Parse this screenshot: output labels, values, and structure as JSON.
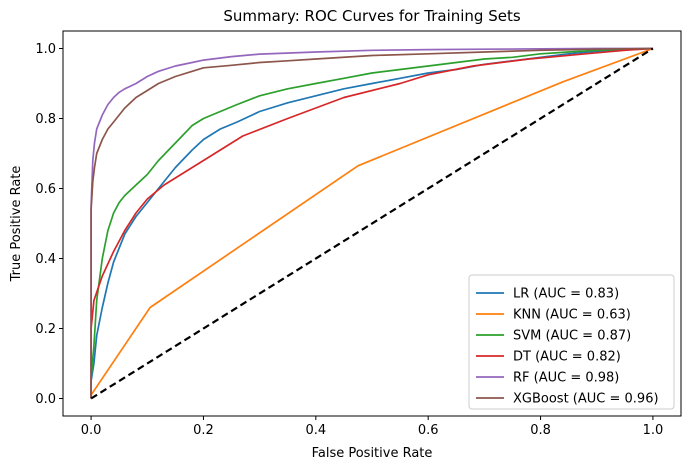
{
  "chart_data": {
    "type": "line",
    "title": "Summary: ROC Curves for Training Sets",
    "xlabel": "False Positive Rate",
    "ylabel": "True Positive Rate",
    "xlim": [
      -0.05,
      1.05
    ],
    "ylim": [
      -0.05,
      1.05
    ],
    "xticks": [
      "0.0",
      "0.2",
      "0.4",
      "0.6",
      "0.8",
      "1.0"
    ],
    "yticks": [
      "0.0",
      "0.2",
      "0.4",
      "0.6",
      "0.8",
      "1.0"
    ],
    "grid": false,
    "legend_position": "lower-right",
    "series": [
      {
        "name": "LR (AUC = 0.83)",
        "color": "#1f77b4",
        "x": [
          0.0,
          0.0,
          0.005,
          0.01,
          0.02,
          0.03,
          0.04,
          0.05,
          0.06,
          0.08,
          0.1,
          0.12,
          0.15,
          0.18,
          0.2,
          0.23,
          0.26,
          0.3,
          0.35,
          0.4,
          0.45,
          0.5,
          0.55,
          0.6,
          0.65,
          0.7,
          0.75,
          0.8,
          0.85,
          0.9,
          0.95,
          1.0
        ],
        "y": [
          0.0,
          0.05,
          0.1,
          0.18,
          0.26,
          0.33,
          0.39,
          0.43,
          0.47,
          0.52,
          0.56,
          0.6,
          0.66,
          0.71,
          0.74,
          0.77,
          0.79,
          0.82,
          0.845,
          0.865,
          0.885,
          0.9,
          0.915,
          0.93,
          0.94,
          0.955,
          0.965,
          0.975,
          0.985,
          0.992,
          0.997,
          1.0
        ]
      },
      {
        "name": "KNN (AUC = 0.63)",
        "color": "#ff7f0e",
        "x": [
          0.0,
          0.0,
          0.105,
          0.475,
          0.84,
          1.0
        ],
        "y": [
          0.0,
          0.01,
          0.26,
          0.665,
          0.905,
          1.0
        ]
      },
      {
        "name": "SVM (AUC = 0.87)",
        "color": "#2ca02c",
        "x": [
          0.0,
          0.0,
          0.005,
          0.01,
          0.02,
          0.03,
          0.04,
          0.05,
          0.06,
          0.08,
          0.1,
          0.12,
          0.15,
          0.18,
          0.2,
          0.23,
          0.26,
          0.3,
          0.35,
          0.4,
          0.45,
          0.5,
          0.55,
          0.6,
          0.65,
          0.7,
          0.75,
          0.8,
          0.85,
          0.9,
          0.95,
          1.0
        ],
        "y": [
          0.0,
          0.06,
          0.15,
          0.28,
          0.4,
          0.48,
          0.53,
          0.56,
          0.58,
          0.61,
          0.64,
          0.68,
          0.73,
          0.78,
          0.8,
          0.82,
          0.84,
          0.865,
          0.885,
          0.9,
          0.915,
          0.93,
          0.94,
          0.95,
          0.96,
          0.97,
          0.975,
          0.985,
          0.99,
          0.995,
          0.998,
          1.0
        ]
      },
      {
        "name": "DT (AUC = 0.82)",
        "color": "#d62728",
        "x": [
          0.0,
          0.0,
          0.005,
          0.02,
          0.04,
          0.06,
          0.08,
          0.1,
          0.13,
          0.17,
          0.2,
          0.27,
          0.35,
          0.45,
          0.55,
          0.6,
          0.68,
          0.78,
          0.88,
          0.95,
          1.0
        ],
        "y": [
          0.0,
          0.2,
          0.28,
          0.35,
          0.42,
          0.48,
          0.53,
          0.57,
          0.61,
          0.65,
          0.68,
          0.75,
          0.8,
          0.86,
          0.9,
          0.925,
          0.95,
          0.97,
          0.985,
          0.995,
          1.0
        ]
      },
      {
        "name": "RF (AUC = 0.98)",
        "color": "#9467bd",
        "x": [
          0.0,
          0.0,
          0.003,
          0.006,
          0.01,
          0.015,
          0.02,
          0.03,
          0.04,
          0.05,
          0.06,
          0.08,
          0.1,
          0.12,
          0.15,
          0.18,
          0.2,
          0.25,
          0.3,
          0.4,
          0.5,
          0.6,
          0.7,
          0.8,
          0.9,
          1.0
        ],
        "y": [
          0.0,
          0.55,
          0.68,
          0.73,
          0.77,
          0.79,
          0.81,
          0.84,
          0.86,
          0.875,
          0.885,
          0.9,
          0.92,
          0.935,
          0.95,
          0.96,
          0.967,
          0.977,
          0.984,
          0.99,
          0.995,
          0.997,
          0.998,
          0.999,
          1.0,
          1.0
        ]
      },
      {
        "name": "XGBoost (AUC = 0.96)",
        "color": "#8c564b",
        "x": [
          0.0,
          0.0,
          0.003,
          0.006,
          0.01,
          0.02,
          0.03,
          0.04,
          0.05,
          0.06,
          0.08,
          0.1,
          0.12,
          0.15,
          0.18,
          0.2,
          0.25,
          0.3,
          0.35,
          0.4,
          0.5,
          0.6,
          0.7,
          0.8,
          0.9,
          1.0
        ],
        "y": [
          0.0,
          0.54,
          0.62,
          0.66,
          0.7,
          0.74,
          0.77,
          0.79,
          0.81,
          0.83,
          0.86,
          0.88,
          0.9,
          0.92,
          0.935,
          0.945,
          0.952,
          0.96,
          0.965,
          0.97,
          0.98,
          0.985,
          0.99,
          0.995,
          0.998,
          1.0
        ]
      }
    ],
    "reference_line": {
      "color": "#000000",
      "style": "dashed",
      "x": [
        0.0,
        1.0
      ],
      "y": [
        0.0,
        1.0
      ]
    }
  }
}
